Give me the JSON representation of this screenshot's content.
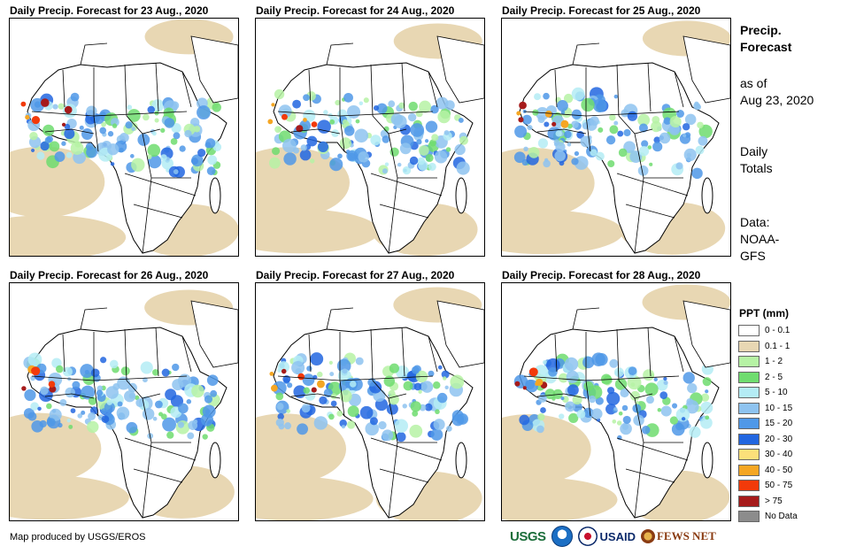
{
  "panels": [
    {
      "title": "Daily Precip. Forecast for 23 Aug., 2020"
    },
    {
      "title": "Daily Precip. Forecast for 24 Aug., 2020"
    },
    {
      "title": "Daily Precip. Forecast for 25 Aug., 2020"
    },
    {
      "title": "Daily Precip. Forecast for 26 Aug., 2020"
    },
    {
      "title": "Daily Precip. Forecast for 27 Aug., 2020"
    },
    {
      "title": "Daily Precip. Forecast for 28 Aug., 2020"
    }
  ],
  "sidebar": {
    "title_line1": "Precip.",
    "title_line2": "Forecast",
    "asof_line1": "as of",
    "asof_line2": "Aug 23, 2020",
    "totals_line1": "Daily",
    "totals_line2": "Totals",
    "data_line1": "Data:",
    "data_line2": "NOAA-",
    "data_line3": "GFS"
  },
  "legend": {
    "title": "PPT (mm)",
    "items": [
      {
        "label": "0 - 0.1",
        "color": "#ffffff"
      },
      {
        "label": "0.1 - 1",
        "color": "#e8d7b3"
      },
      {
        "label": "1 - 2",
        "color": "#b6f2a4"
      },
      {
        "label": "2 - 5",
        "color": "#6fdc6f"
      },
      {
        "label": "5 - 10",
        "color": "#b4ecf5"
      },
      {
        "label": "10 - 15",
        "color": "#8ec3f0"
      },
      {
        "label": "15 - 20",
        "color": "#4f98e8"
      },
      {
        "label": "20 - 30",
        "color": "#2266e0"
      },
      {
        "label": "30 - 40",
        "color": "#fbe07a"
      },
      {
        "label": "40 - 50",
        "color": "#f5a623"
      },
      {
        "label": "50 - 75",
        "color": "#f23a0a"
      },
      {
        "label": "> 75",
        "color": "#a61b1b"
      },
      {
        "label": "No Data",
        "color": "#8c8c8c"
      }
    ]
  },
  "credit": "Map produced by USGS/EROS",
  "logos": {
    "usgs": "USGS",
    "usaid": "USAID",
    "fewsnet": "FEWS NET"
  }
}
